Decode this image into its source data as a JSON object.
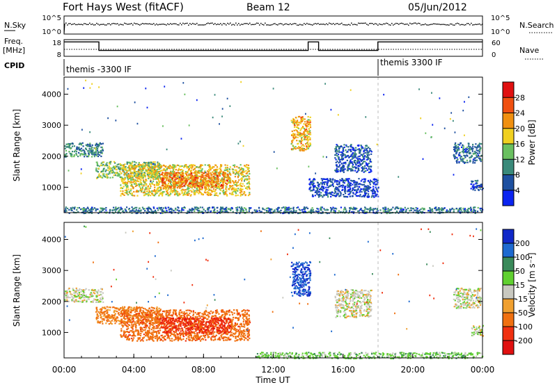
{
  "header": {
    "station": "Fort Hays West (fitACF)",
    "beam": "Beam 12",
    "date": "05/Jun/2012"
  },
  "chart_data": [
    {
      "type": "line",
      "panel": "noise",
      "left_label": "N.Sky",
      "right_label": "N.Search",
      "left_ticks": [
        "10^5",
        "10^0"
      ],
      "right_ticks": [
        "10^5",
        "10^0"
      ]
    },
    {
      "type": "line",
      "panel": "frequency",
      "left_label_1": "Freq.",
      "left_label_2": "[MHz]",
      "right_label": "Nave",
      "left_ticks": [
        "18",
        "8"
      ],
      "right_ticks": [
        "60",
        "0"
      ],
      "freq_steps": [
        {
          "t0": 0.0,
          "t1": 2.0,
          "level": 0.86
        },
        {
          "t0": 2.0,
          "t1": 14.0,
          "level": 0.35
        },
        {
          "t0": 14.0,
          "t1": 14.6,
          "level": 0.86
        },
        {
          "t0": 14.6,
          "t1": 18.0,
          "level": 0.35
        },
        {
          "t0": 18.0,
          "t1": 24.0,
          "level": 0.86
        }
      ]
    },
    {
      "type": "table",
      "panel": "cpid",
      "label": "CPID",
      "entries": [
        {
          "start_hour": 0.0,
          "text": "themis -3300 IF"
        },
        {
          "start_hour": 18.0,
          "text": "themis 3300 IF"
        }
      ]
    },
    {
      "type": "heatmap",
      "panel": "power",
      "ylabel": "Slant Range [km]",
      "yticks": [
        1000,
        2000,
        3000,
        4000
      ],
      "ylim": [
        180,
        4550
      ],
      "xlim": [
        0,
        24
      ],
      "colorbar_label": "Power [dB]",
      "colorbar_ticks": [
        "4",
        "8",
        "12",
        "16",
        "20",
        "24",
        "28"
      ],
      "colorbar_colors": [
        "#0b24f0",
        "#1e50a0",
        "#3a8a7a",
        "#6ac060",
        "#f0d020",
        "#f09010",
        "#f05010",
        "#e01010"
      ],
      "regions": [
        {
          "t0": 0.0,
          "t1": 2.2,
          "r0": 2000,
          "r1": 2450,
          "v": 12
        },
        {
          "t0": 1.8,
          "t1": 5.5,
          "r0": 1300,
          "r1": 1850,
          "v": 16
        },
        {
          "t0": 3.2,
          "t1": 10.6,
          "r0": 750,
          "r1": 1750,
          "v": 20
        },
        {
          "t0": 5.5,
          "t1": 9.5,
          "r0": 1000,
          "r1": 1500,
          "v": 26
        },
        {
          "t0": 13.0,
          "t1": 14.1,
          "r0": 2200,
          "r1": 3300,
          "v": 22
        },
        {
          "t0": 15.5,
          "t1": 17.6,
          "r0": 1500,
          "r1": 2400,
          "v": 8
        },
        {
          "t0": 14.0,
          "t1": 18.0,
          "r0": 700,
          "r1": 1300,
          "v": 6
        },
        {
          "t0": 22.3,
          "t1": 23.9,
          "r0": 1800,
          "r1": 2450,
          "v": 10
        },
        {
          "t0": 23.3,
          "t1": 24.0,
          "r0": 900,
          "r1": 1250,
          "v": 8
        },
        {
          "t0": 0.0,
          "t1": 24.0,
          "r0": 180,
          "r1": 380,
          "v": 10
        }
      ]
    },
    {
      "type": "heatmap",
      "panel": "velocity",
      "ylabel": "Slant Range [km]",
      "yticks": [
        1000,
        2000,
        3000,
        4000
      ],
      "ylim": [
        180,
        4550
      ],
      "xlim": [
        0,
        24
      ],
      "xlabel": "Time UT",
      "xticks": [
        "00:00",
        "04:00",
        "08:00",
        "12:00",
        "16:00",
        "20:00",
        "00:00"
      ],
      "colorbar_label": "Velocity [m s⁻¹]",
      "colorbar_ticks": [
        "200",
        "100",
        "50",
        "15",
        "-15",
        "-50",
        "-100",
        "-200"
      ],
      "colorbar_colors": [
        "#1028c8",
        "#1e6ad0",
        "#3a8a5a",
        "#60d030",
        "#c8c8c0",
        "#f0a030",
        "#f07010",
        "#f03010",
        "#e01010"
      ],
      "regions": [
        {
          "t0": 0.0,
          "t1": 2.2,
          "r0": 2000,
          "r1": 2450,
          "v": 0
        },
        {
          "t0": 1.8,
          "t1": 5.5,
          "r0": 1300,
          "r1": 1850,
          "v": -60
        },
        {
          "t0": 3.2,
          "t1": 10.6,
          "r0": 750,
          "r1": 1750,
          "v": -80
        },
        {
          "t0": 5.5,
          "t1": 9.5,
          "r0": 1000,
          "r1": 1500,
          "v": -180
        },
        {
          "t0": 13.0,
          "t1": 14.1,
          "r0": 2200,
          "r1": 3300,
          "v": 200
        },
        {
          "t0": 15.5,
          "t1": 17.6,
          "r0": 1500,
          "r1": 2400,
          "v": 0
        },
        {
          "t0": 22.3,
          "t1": 23.9,
          "r0": 1800,
          "r1": 2450,
          "v": 0
        },
        {
          "t0": 23.3,
          "t1": 24.0,
          "r0": 900,
          "r1": 1250,
          "v": 0
        },
        {
          "t0": 11.0,
          "t1": 24.0,
          "r0": 180,
          "r1": 380,
          "v": 30
        }
      ]
    }
  ]
}
